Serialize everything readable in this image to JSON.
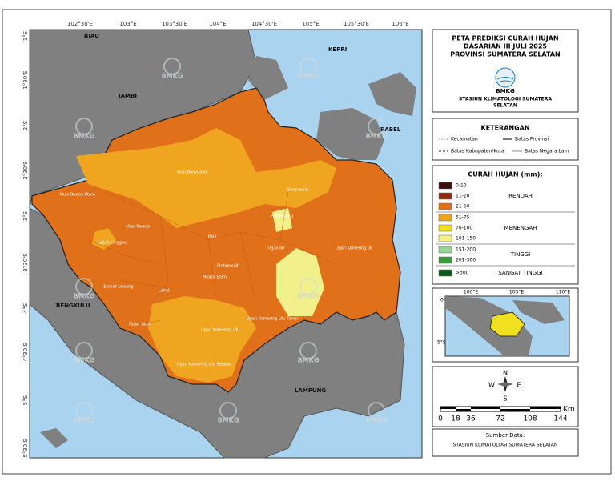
{
  "map": {
    "lon_labels": [
      "102°30'E",
      "103°E",
      "103°30'E",
      "104°E",
      "104°30'E",
      "105°E",
      "105°30'E",
      "106°E"
    ],
    "lat_labels": [
      "1°S",
      "1°30'S",
      "2°S",
      "2°30'S",
      "3°S",
      "3°30'S",
      "4°S",
      "4°30'S",
      "5°S",
      "5°30'S"
    ],
    "regions": [
      "RIAU",
      "KEPRI",
      "JAMBI",
      "BABEL",
      "BENGKULU",
      "LAMPUNG"
    ],
    "districts": [
      "Musi Banyuasin",
      "Banyuasin",
      "Musi Rawas Utara",
      "Musi Rawas",
      "Lubuk Linggau",
      "Empat Lawang",
      "Pagar Alam",
      "Lahat",
      "Muara Enim",
      "Prabumulih",
      "PALI",
      "Palembang",
      "Ogan Ilir",
      "Ogan Komering Ilir",
      "Ogan Komering Ulu",
      "Ogan Komering Ulu Timur",
      "Ogan Komering Ulu Selatan"
    ],
    "watermark": "BMKG"
  },
  "header": {
    "title": [
      "PETA PREDIKSI CURAH HUJAN",
      "DASARIAN III JULI 2025",
      "PROVINSI SUMATERA SELATAN"
    ],
    "agency": "BMKG",
    "station": [
      "STASIUN KLIMATOLOGI SUMATERA",
      "SELATAN"
    ]
  },
  "keterangan": {
    "title": "KETERANGAN",
    "items": [
      "Kecamatan",
      "Batas Provinsi",
      "Batas Kabupaten/Kota",
      "Batas Negara Lain"
    ]
  },
  "curah_hujan": {
    "title": "CURAH HUJAN (mm):",
    "classes": [
      {
        "label": "0-10",
        "color": "#3b0d0d"
      },
      {
        "label": "11-20",
        "color": "#8a2d10"
      },
      {
        "label": "21-50",
        "color": "#e0701a"
      },
      {
        "label": "51-75",
        "color": "#f0a521"
      },
      {
        "label": "76-100",
        "color": "#f0e020"
      },
      {
        "label": "101-150",
        "color": "#f1f08a"
      },
      {
        "label": "151-200",
        "color": "#98d398"
      },
      {
        "label": "201-300",
        "color": "#3a9a3a"
      },
      {
        "label": ">300",
        "color": "#0d5a17"
      }
    ],
    "groups": [
      "RENDAH",
      "MENENGAH",
      "TINGGI",
      "SANGAT TINGGI"
    ]
  },
  "inset": {
    "lon_labels": [
      "100°E",
      "105°E",
      "110°E"
    ],
    "lat_labels": [
      "0°",
      "5°S"
    ]
  },
  "compass": [
    "N",
    "S",
    "E",
    "W"
  ],
  "scale": {
    "ticks": [
      "0",
      "18",
      "36",
      "72",
      "108",
      "144"
    ],
    "unit": "Km"
  },
  "source": {
    "label": "Sumber Data:",
    "text": "STASIUN KLIMATOLOGI SUMATERA SELATAN"
  }
}
